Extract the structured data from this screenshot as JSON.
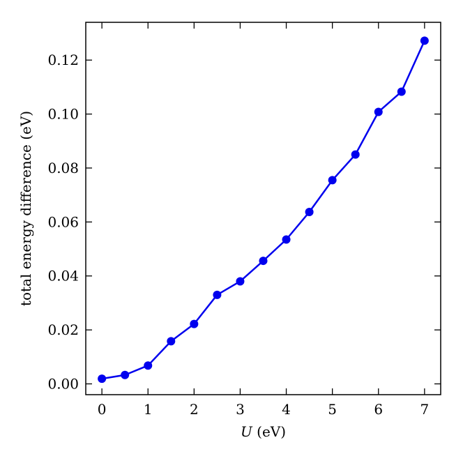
{
  "chart_data": {
    "type": "line",
    "title": "",
    "xlabel_symbol": "U",
    "xlabel_unit": " (eV)",
    "ylabel": "total energy difference (eV)",
    "xlim": [
      -0.35,
      7.35
    ],
    "ylim": [
      -0.004,
      0.134
    ],
    "xticks": [
      0,
      1,
      2,
      3,
      4,
      5,
      6,
      7
    ],
    "xtick_labels": [
      "0",
      "1",
      "2",
      "3",
      "4",
      "5",
      "6",
      "7"
    ],
    "yticks": [
      0.0,
      0.02,
      0.04,
      0.06,
      0.08,
      0.1,
      0.12
    ],
    "ytick_labels": [
      "0.00",
      "0.02",
      "0.04",
      "0.06",
      "0.08",
      "0.10",
      "0.12"
    ],
    "grid": false,
    "legend": "none",
    "series": [
      {
        "color": "#0000ee",
        "marker": "circle",
        "x": [
          0,
          0.5,
          1,
          1.5,
          2,
          2.5,
          3,
          3.5,
          4,
          4.5,
          5,
          5.5,
          6,
          6.5,
          7
        ],
        "y": [
          0.0019,
          0.0033,
          0.0068,
          0.0158,
          0.0222,
          0.033,
          0.038,
          0.0456,
          0.0535,
          0.0637,
          0.0755,
          0.085,
          0.1008,
          0.1083,
          0.1272
        ]
      }
    ]
  }
}
